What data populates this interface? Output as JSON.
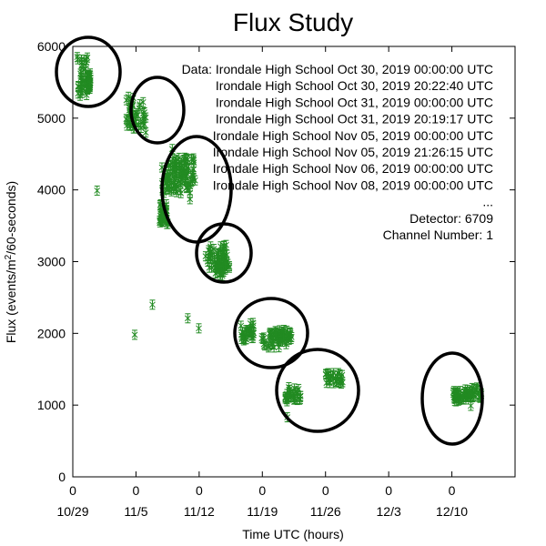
{
  "chart_data": {
    "type": "scatter",
    "title": "Flux Study",
    "xlabel": "Time UTC (hours)",
    "ylabel_main": "Flux (events/m",
    "ylabel_sup": "2",
    "ylabel_tail": "/60-seconds)",
    "ylim": [
      0,
      6000
    ],
    "yticks": [
      0,
      1000,
      2000,
      3000,
      4000,
      5000,
      6000
    ],
    "xlim": [
      0,
      100
    ],
    "xticks": [
      {
        "pos": 0,
        "top": "0",
        "bottom": "10/29"
      },
      {
        "pos": 14.286,
        "top": "0",
        "bottom": "11/5"
      },
      {
        "pos": 28.571,
        "top": "0",
        "bottom": "11/12"
      },
      {
        "pos": 42.857,
        "top": "0",
        "bottom": "11/19"
      },
      {
        "pos": 57.143,
        "top": "0",
        "bottom": "11/26"
      },
      {
        "pos": 71.429,
        "top": "0",
        "bottom": "12/3"
      },
      {
        "pos": 85.714,
        "top": "0",
        "bottom": "12/10"
      }
    ],
    "legend": {
      "position": "top-right",
      "lines": [
        "Data: Irondale High School Oct 30, 2019 00:00:00 UTC",
        "Irondale High School Oct 30, 2019 20:22:40 UTC",
        "Irondale High School Oct 31, 2019 00:00:00 UTC",
        "Irondale High School Oct 31, 2019 20:19:17 UTC",
        "Irondale High School Nov 05, 2019 00:00:00 UTC",
        "Irondale High School Nov 05, 2019 21:26:15 UTC",
        "Irondale High School Nov 06, 2019 00:00:00 UTC",
        "Irondale High School Nov 08, 2019 00:00:00 UTC",
        "...",
        "Detector: 6709",
        "Channel Number: 1"
      ]
    },
    "series_color": "#228b22",
    "clusters": [
      {
        "x": [
          1.0,
          3.5
        ],
        "y": [
          5300,
          5900
        ]
      },
      {
        "x": [
          3.2,
          4.0
        ],
        "y": [
          5400,
          5650
        ]
      },
      {
        "x": [
          12.0,
          16.5
        ],
        "y": [
          4850,
          5300
        ]
      },
      {
        "x": [
          20.0,
          28.0
        ],
        "y": [
          3950,
          4350
        ]
      },
      {
        "x": [
          22.5,
          27.5
        ],
        "y": [
          4100,
          4450
        ]
      },
      {
        "x": [
          19.5,
          21.5
        ],
        "y": [
          3500,
          3800
        ]
      },
      {
        "x": [
          30.0,
          35.5
        ],
        "y": [
          2900,
          3250
        ]
      },
      {
        "x": [
          32.0,
          34.5
        ],
        "y": [
          2800,
          3050
        ]
      },
      {
        "x": [
          38.0,
          41.0
        ],
        "y": [
          1900,
          2150
        ]
      },
      {
        "x": [
          42.5,
          48.5
        ],
        "y": [
          1800,
          2000
        ]
      },
      {
        "x": [
          44.0,
          49.5
        ],
        "y": [
          1900,
          2050
        ]
      },
      {
        "x": [
          48.0,
          51.5
        ],
        "y": [
          1050,
          1250
        ]
      },
      {
        "x": [
          57.0,
          61.0
        ],
        "y": [
          1300,
          1450
        ]
      },
      {
        "x": [
          86.0,
          89.0
        ],
        "y": [
          1050,
          1200
        ]
      },
      {
        "x": [
          88.5,
          92.5
        ],
        "y": [
          1100,
          1250
        ]
      }
    ],
    "isolated_points": [
      {
        "x": 5.5,
        "y": 3990
      },
      {
        "x": 14.0,
        "y": 1980
      },
      {
        "x": 18.0,
        "y": 2400
      },
      {
        "x": 22.5,
        "y": 4570
      },
      {
        "x": 26.0,
        "y": 2210
      },
      {
        "x": 28.5,
        "y": 2070
      },
      {
        "x": 48.5,
        "y": 830
      },
      {
        "x": 90.0,
        "y": 990
      },
      {
        "x": 16.5,
        "y": 4800
      },
      {
        "x": 26.5,
        "y": 3870
      }
    ]
  }
}
